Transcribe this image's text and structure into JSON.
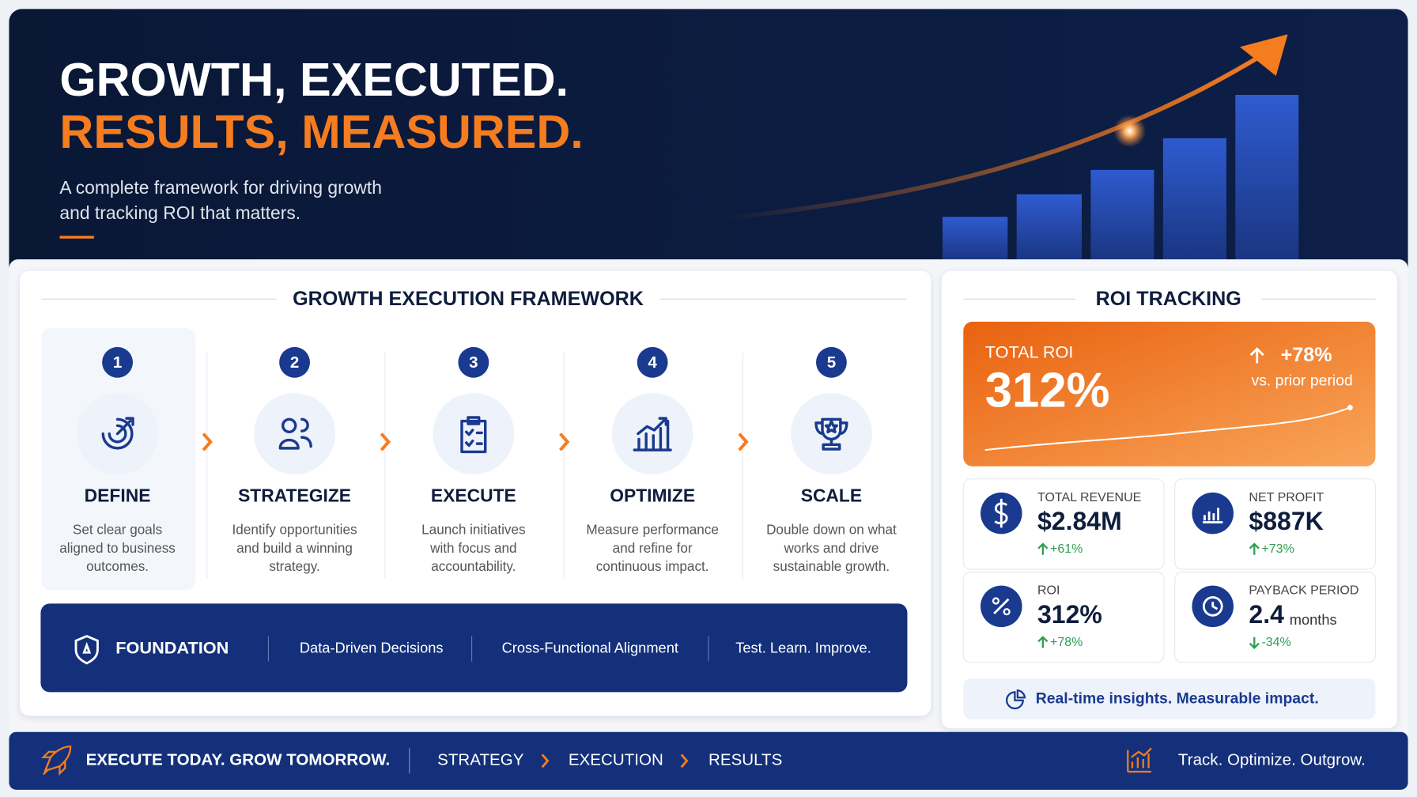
{
  "hero": {
    "title_line1": "GROWTH, EXECUTED.",
    "title_line2": "RESULTS, MEASURED.",
    "subtitle_lines": [
      "A complete framework for driving growth",
      "and tracking ROI that matters."
    ]
  },
  "framework": {
    "title": "GROWTH EXECUTION FRAMEWORK",
    "steps": [
      {
        "number": "1",
        "title": "DEFINE",
        "description": [
          "Set clear goals",
          "aligned to business",
          "outcomes."
        ]
      },
      {
        "number": "2",
        "title": "STRATEGIZE",
        "description": [
          "Identify opportunities",
          "and build a winning",
          "strategy."
        ]
      },
      {
        "number": "3",
        "title": "EXECUTE",
        "description": [
          "Launch initiatives",
          "with focus and",
          "accountability."
        ]
      },
      {
        "number": "4",
        "title": "OPTIMIZE",
        "description": [
          "Measure performance",
          "and refine for",
          "continuous impact."
        ]
      },
      {
        "number": "5",
        "title": "SCALE",
        "description": [
          "Double down on what",
          "works and drive",
          "sustainable growth."
        ]
      }
    ]
  },
  "foundation": {
    "label": "FOUNDATION",
    "items": [
      "Data-Driven Decisions",
      "Cross-Functional Alignment",
      "Test. Learn. Improve."
    ]
  },
  "roi": {
    "title": "ROI TRACKING",
    "total": {
      "label": "TOTAL ROI",
      "value": "312%",
      "change": "+78%",
      "comparison": "vs. prior period"
    },
    "metrics": [
      {
        "label": "TOTAL REVENUE",
        "value": "$2.84M",
        "change": "+61%"
      },
      {
        "label": "NET PROFIT",
        "value": "$887K",
        "change": "+73%"
      },
      {
        "label": "ROI",
        "value": "312%",
        "change": "+78%"
      },
      {
        "label": "PAYBACK PERIOD",
        "value": "2.4",
        "unit": "months",
        "change": "-34%"
      }
    ],
    "insight": "Real-time insights. Measurable impact."
  },
  "footer": {
    "tagline": "EXECUTE TODAY. GROW TOMORROW.",
    "steps": [
      "STRATEGY",
      "EXECUTION",
      "RESULTS"
    ],
    "motto": "Track. Optimize. Outgrow."
  }
}
